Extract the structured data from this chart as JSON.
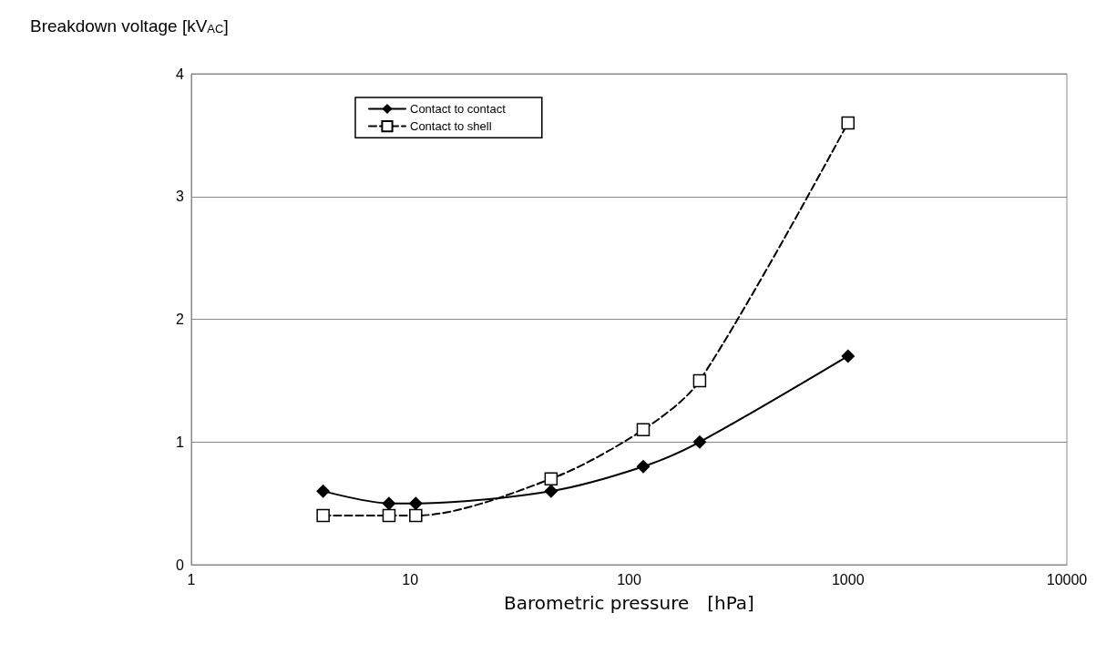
{
  "chart_data": {
    "type": "line",
    "xlabel": "Barometric pressure　[hPa]",
    "ylabel": "Breakdown voltage [kV$_{AC}$]",
    "log": "x",
    "xlim": [
      1,
      10000
    ],
    "xticks": [
      1,
      10,
      100,
      1000,
      10000
    ],
    "ylim": [
      0,
      4
    ],
    "yticks": [
      0,
      1,
      2,
      3,
      4
    ],
    "grid": "y",
    "legend": "top left",
    "series": [
      {
        "name": "Contact to contact",
        "color": "#000000",
        "marker": "diamond",
        "line_style": "solid",
        "x": [
          4,
          8,
          10.6,
          44,
          116,
          210,
          1000
        ],
        "values": [
          0.6,
          0.5,
          0.5,
          0.6,
          0.8,
          1.0,
          1.7
        ]
      },
      {
        "name": "Contact to shell",
        "color": "#000000",
        "marker": "square",
        "line_style": "dashed",
        "x": [
          4,
          8,
          10.6,
          44,
          116,
          210,
          1000
        ],
        "values": [
          0.4,
          0.4,
          0.4,
          0.7,
          1.1,
          1.5,
          3.6
        ]
      }
    ]
  }
}
